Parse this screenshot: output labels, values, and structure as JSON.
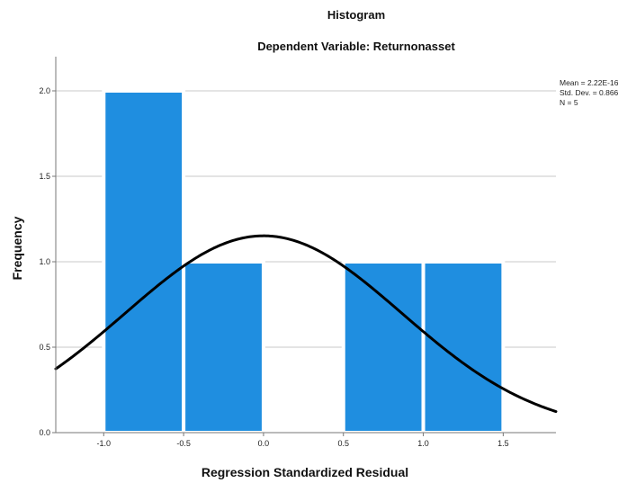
{
  "chart_data": {
    "type": "bar",
    "title": "Histogram",
    "subtitle": "Dependent Variable: Returnonasset",
    "xlabel": "Regression Standardized Residual",
    "ylabel": "Frequency",
    "xlim": [
      -1.3,
      1.83
    ],
    "ylim": [
      0,
      2.2
    ],
    "x_ticks": [
      "-1.0",
      "-0.5",
      "0.0",
      "0.5",
      "1.0",
      "1.5"
    ],
    "x_tick_values": [
      -1.0,
      -0.5,
      0.0,
      0.5,
      1.0,
      1.5
    ],
    "y_ticks": [
      "0.0",
      "0.5",
      "1.0",
      "1.5",
      "2.0"
    ],
    "y_tick_values": [
      0.0,
      0.5,
      1.0,
      1.5,
      2.0
    ],
    "grid": true,
    "bins": [
      {
        "start": -1.0,
        "end": -0.5,
        "value": 2
      },
      {
        "start": -0.5,
        "end": 0.0,
        "value": 1
      },
      {
        "start": 0.0,
        "end": 0.5,
        "value": 0
      },
      {
        "start": 0.5,
        "end": 1.0,
        "value": 1
      },
      {
        "start": 1.0,
        "end": 1.5,
        "value": 1
      }
    ],
    "normal_curve": {
      "mean": 2.22e-16,
      "std_dev": 0.866,
      "n": 5,
      "bin_width": 0.5
    },
    "stats": [
      "Mean = 2.22E-16",
      "Std. Dev. = 0.866",
      "N = 5"
    ],
    "colors": {
      "bar": "#1f8ee0",
      "bar_edge": "#ffffff",
      "curve": "#000000",
      "grid": "#c8c8c8",
      "axis": "#777777"
    }
  }
}
